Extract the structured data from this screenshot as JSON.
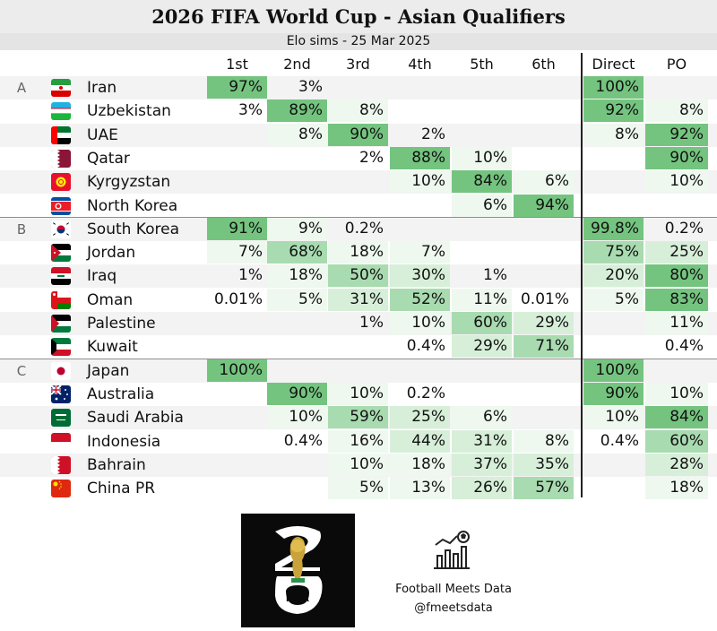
{
  "title": "2026 FIFA World Cup - Asian Qualifiers",
  "subtitle": "Elo sims - 25 Mar 2025",
  "columns": [
    "1st",
    "2nd",
    "3rd",
    "4th",
    "5th",
    "6th",
    "Direct",
    "PO"
  ],
  "colors": {
    "header_bg": "#ececec",
    "strong": "#74c47f",
    "medium": "#a9dbb0",
    "light": "#d7efd9",
    "faint": "#eef8ef"
  },
  "chart_data": {
    "type": "table",
    "groups": [
      {
        "name": "A",
        "teams": [
          {
            "team": "Iran",
            "flag": "iran-flag-icon",
            "values": [
              "97%",
              "3%",
              "",
              "",
              "",
              "",
              "100%",
              ""
            ]
          },
          {
            "team": "Uzbekistan",
            "flag": "uzbekistan-flag-icon",
            "values": [
              "3%",
              "89%",
              "8%",
              "",
              "",
              "",
              "92%",
              "8%"
            ]
          },
          {
            "team": "UAE",
            "flag": "uae-flag-icon",
            "values": [
              "",
              "8%",
              "90%",
              "2%",
              "",
              "",
              "8%",
              "92%"
            ]
          },
          {
            "team": "Qatar",
            "flag": "qatar-flag-icon",
            "values": [
              "",
              "",
              "2%",
              "88%",
              "10%",
              "",
              "",
              "90%"
            ]
          },
          {
            "team": "Kyrgyzstan",
            "flag": "kyrgyzstan-flag-icon",
            "values": [
              "",
              "",
              "",
              "10%",
              "84%",
              "6%",
              "",
              "10%"
            ]
          },
          {
            "team": "North Korea",
            "flag": "north-korea-flag-icon",
            "values": [
              "",
              "",
              "",
              "",
              "6%",
              "94%",
              "",
              ""
            ]
          }
        ]
      },
      {
        "name": "B",
        "teams": [
          {
            "team": "South Korea",
            "flag": "south-korea-flag-icon",
            "values": [
              "91%",
              "9%",
              "0.2%",
              "",
              "",
              "",
              "99.8%",
              "0.2%"
            ]
          },
          {
            "team": "Jordan",
            "flag": "jordan-flag-icon",
            "values": [
              "7%",
              "68%",
              "18%",
              "7%",
              "",
              "",
              "75%",
              "25%"
            ]
          },
          {
            "team": "Iraq",
            "flag": "iraq-flag-icon",
            "values": [
              "1%",
              "18%",
              "50%",
              "30%",
              "1%",
              "",
              "20%",
              "80%"
            ]
          },
          {
            "team": "Oman",
            "flag": "oman-flag-icon",
            "values": [
              "0.01%",
              "5%",
              "31%",
              "52%",
              "11%",
              "0.01%",
              "5%",
              "83%"
            ]
          },
          {
            "team": "Palestine",
            "flag": "palestine-flag-icon",
            "values": [
              "",
              "",
              "1%",
              "10%",
              "60%",
              "29%",
              "",
              "11%"
            ]
          },
          {
            "team": "Kuwait",
            "flag": "kuwait-flag-icon",
            "values": [
              "",
              "",
              "",
              "0.4%",
              "29%",
              "71%",
              "",
              "0.4%"
            ]
          }
        ]
      },
      {
        "name": "C",
        "teams": [
          {
            "team": "Japan",
            "flag": "japan-flag-icon",
            "values": [
              "100%",
              "",
              "",
              "",
              "",
              "",
              "100%",
              ""
            ]
          },
          {
            "team": "Australia",
            "flag": "australia-flag-icon",
            "values": [
              "",
              "90%",
              "10%",
              "0.2%",
              "",
              "",
              "90%",
              "10%"
            ]
          },
          {
            "team": "Saudi Arabia",
            "flag": "saudi-arabia-flag-icon",
            "values": [
              "",
              "10%",
              "59%",
              "25%",
              "6%",
              "",
              "10%",
              "84%"
            ]
          },
          {
            "team": "Indonesia",
            "flag": "indonesia-flag-icon",
            "values": [
              "",
              "0.4%",
              "16%",
              "44%",
              "31%",
              "8%",
              "0.4%",
              "60%"
            ]
          },
          {
            "team": "Bahrain",
            "flag": "bahrain-flag-icon",
            "values": [
              "",
              "",
              "10%",
              "18%",
              "37%",
              "35%",
              "",
              "28%"
            ]
          },
          {
            "team": "China PR",
            "flag": "china-flag-icon",
            "values": [
              "",
              "",
              "5%",
              "13%",
              "26%",
              "57%",
              "",
              "18%"
            ]
          }
        ]
      }
    ]
  },
  "footer": {
    "logo_text": "FIFA",
    "logo_icon": "fifa-world-cup-26-logo",
    "brand_icon": "chart-football-icon",
    "name": "Football Meets Data",
    "handle": "@fmeetsdata"
  }
}
